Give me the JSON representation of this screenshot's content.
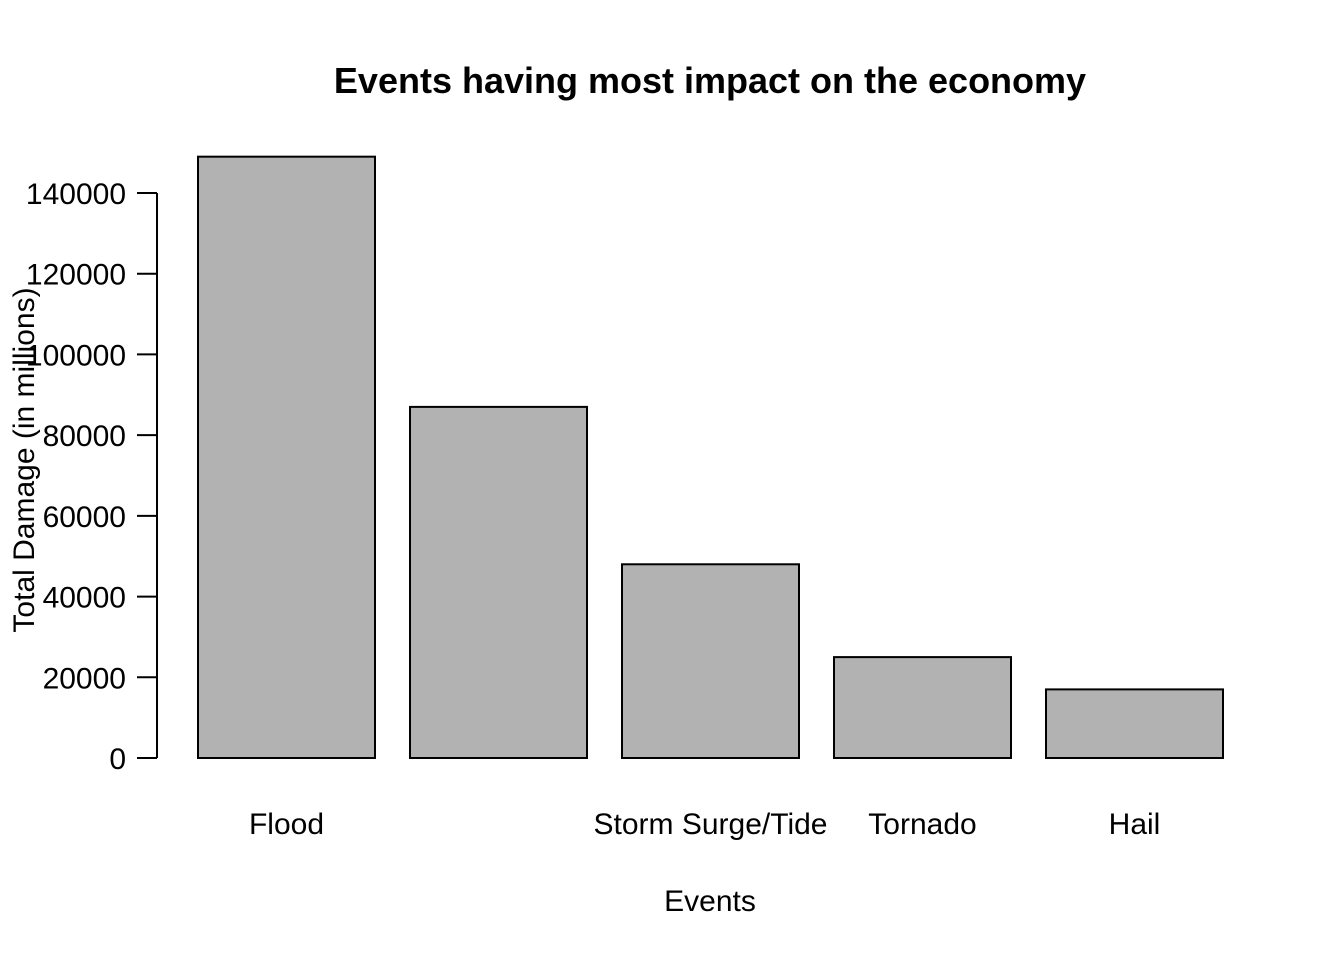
{
  "chart_data": {
    "type": "bar",
    "title": "Events having most impact on the economy",
    "xlabel": "Events",
    "ylabel": "Total Damage (in millions)",
    "categories": [
      "Flood",
      "",
      "Storm Surge/Tide",
      "Tornado",
      "Hail"
    ],
    "values": [
      149000,
      87000,
      48000,
      25000,
      17000
    ],
    "ylim": [
      0,
      140000
    ],
    "yticks": [
      0,
      20000,
      40000,
      60000,
      80000,
      100000,
      120000,
      140000
    ],
    "bar_color": "#b2b2b2",
    "grid": false,
    "legend": "none"
  }
}
